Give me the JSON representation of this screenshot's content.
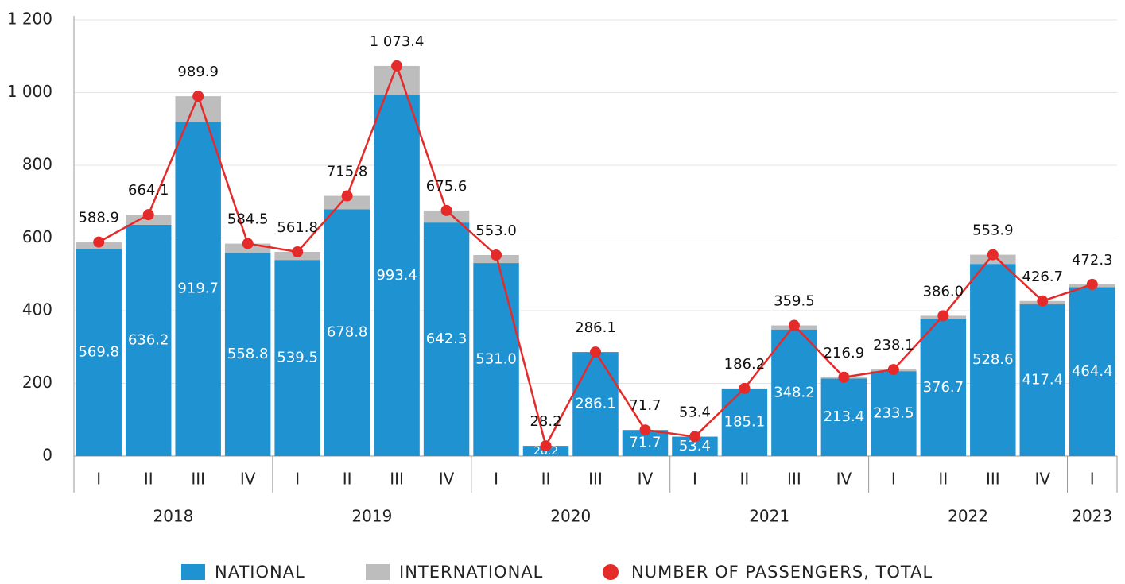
{
  "chart_data": {
    "type": "bar-line",
    "groups": [
      {
        "name": "2018",
        "categories": [
          "I",
          "II",
          "III",
          "IV"
        ]
      },
      {
        "name": "2019",
        "categories": [
          "I",
          "II",
          "III",
          "IV"
        ]
      },
      {
        "name": "2020",
        "categories": [
          "I",
          "II",
          "III",
          "IV"
        ]
      },
      {
        "name": "2021",
        "categories": [
          "I",
          "II",
          "III",
          "IV"
        ]
      },
      {
        "name": "2022",
        "categories": [
          "I",
          "II",
          "III",
          "IV"
        ]
      },
      {
        "name": "2023",
        "categories": [
          "I"
        ]
      }
    ],
    "series": [
      {
        "name": "NATIONAL",
        "type": "bar",
        "color": "#1f92d2",
        "values": [
          569.8,
          636.2,
          919.7,
          558.8,
          539.5,
          678.8,
          993.4,
          642.3,
          531.0,
          28.2,
          286.1,
          71.7,
          53.4,
          185.1,
          348.2,
          213.4,
          233.5,
          376.7,
          528.6,
          417.4,
          464.4
        ],
        "value_labels": [
          "569.8",
          "636.2",
          "919.7",
          "558.8",
          "539.5",
          "678.8",
          "993.4",
          "642.3",
          "531.0",
          "28.2",
          "286.1",
          "71.7",
          "53.4",
          "185.1",
          "348.2",
          "213.4",
          "233.5",
          "376.7",
          "528.6",
          "417.4",
          "464.4"
        ]
      },
      {
        "name": "INTERNATIONAL",
        "type": "bar",
        "color": "#bdbdbd",
        "values": [
          19.1,
          27.9,
          70.2,
          25.7,
          22.3,
          37.0,
          80.0,
          33.3,
          22.0,
          0,
          0,
          0,
          0,
          1.1,
          11.3,
          3.5,
          4.6,
          9.3,
          25.3,
          9.3,
          7.9
        ]
      },
      {
        "name": "NUMBER OF PASSENGERS, TOTAL",
        "type": "line",
        "color": "#e52a2a",
        "values": [
          588.9,
          664.1,
          989.9,
          584.5,
          561.8,
          715.8,
          1073.4,
          675.6,
          553.0,
          28.2,
          286.1,
          71.7,
          53.4,
          186.2,
          359.5,
          216.9,
          238.1,
          386.0,
          553.9,
          426.7,
          472.3
        ],
        "value_labels": [
          "588.9",
          "664.1",
          "989.9",
          "584.5",
          "561.8",
          "715.8",
          "1 073.4",
          "675.6",
          "553.0",
          "28.2",
          "286.1",
          "71.7",
          "53.4",
          "186.2",
          "359.5",
          "216.9",
          "238.1",
          "386.0",
          "553.9",
          "426.7",
          "472.3"
        ]
      }
    ],
    "ylim": [
      0,
      1200
    ],
    "yticks": [
      0,
      200,
      400,
      600,
      800,
      {
        "value": 1000,
        "label": "1 000"
      },
      {
        "value": 1200,
        "label": "1 200"
      }
    ],
    "grid": true,
    "legend": "bottom"
  }
}
